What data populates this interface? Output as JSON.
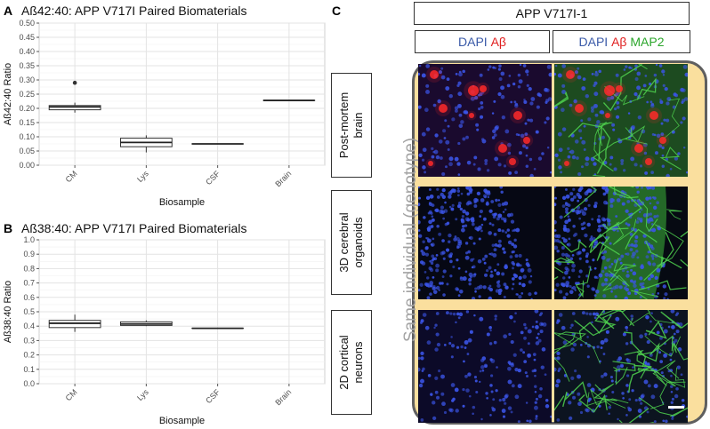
{
  "panel_a": {
    "letter": "A",
    "title_prefix": "Aß42:40: APP V717I Paired Biomaterials",
    "chart_data": {
      "type": "box",
      "title": "Aß42:40: APP V717I Paired Biomaterials",
      "xlabel": "Biosample",
      "ylabel": "Aß42:40 Ratio",
      "categories": [
        "CM",
        "Lys",
        "CSF",
        "Brain"
      ],
      "ylim": [
        0,
        0.5
      ],
      "yticks": [
        "0.00",
        "0.05",
        "0.10",
        "0.15",
        "0.20",
        "0.25",
        "0.30",
        "0.35",
        "0.40",
        "0.45",
        "0.50"
      ],
      "boxes": [
        {
          "category": "CM",
          "min": 0.185,
          "q1": 0.195,
          "median": 0.205,
          "q3": 0.21,
          "max": 0.22,
          "outliers": [
            0.29
          ]
        },
        {
          "category": "Lys",
          "min": 0.045,
          "q1": 0.065,
          "median": 0.08,
          "q3": 0.095,
          "max": 0.105,
          "outliers": []
        },
        {
          "category": "CSF",
          "min": 0.075,
          "q1": 0.075,
          "median": 0.075,
          "q3": 0.075,
          "max": 0.075,
          "outliers": []
        },
        {
          "category": "Brain",
          "min": 0.228,
          "q1": 0.228,
          "median": 0.228,
          "q3": 0.228,
          "max": 0.228,
          "outliers": []
        }
      ],
      "grid": true
    }
  },
  "panel_b": {
    "letter": "B",
    "title_prefix": "Aß38:40: APP V717I Paired Biomaterials",
    "chart_data": {
      "type": "box",
      "title": "Aß38:40: APP V717I Paired Biomaterials",
      "xlabel": "Biosample",
      "ylabel": "Aß38:40 Ratio",
      "categories": [
        "CM",
        "Lys",
        "CSF",
        "Brain"
      ],
      "ylim": [
        0,
        1.0
      ],
      "yticks": [
        "0.0",
        "0.1",
        "0.2",
        "0.3",
        "0.4",
        "0.5",
        "0.6",
        "0.7",
        "0.8",
        "0.9",
        "1.0"
      ],
      "boxes": [
        {
          "category": "CM",
          "min": 0.36,
          "q1": 0.39,
          "median": 0.42,
          "q3": 0.44,
          "max": 0.48,
          "outliers": []
        },
        {
          "category": "Lys",
          "min": 0.4,
          "q1": 0.405,
          "median": 0.415,
          "q3": 0.43,
          "max": 0.44,
          "outliers": []
        },
        {
          "category": "CSF",
          "min": 0.385,
          "q1": 0.385,
          "median": 0.385,
          "q3": 0.385,
          "max": 0.385,
          "outliers": []
        }
      ],
      "grid": true
    }
  },
  "panel_c": {
    "letter": "C",
    "header": "APP V717I-1",
    "col1": {
      "dapi": "DAPI",
      "ab": "Aβ"
    },
    "col2": {
      "dapi": "DAPI",
      "ab": "Aβ",
      "map2": "MAP2"
    },
    "side_label": "Same individual (genotype)",
    "rows": [
      {
        "line1": "Post-mortem",
        "line2": "brain"
      },
      {
        "line1": "3D cerebral",
        "line2": "organoids"
      },
      {
        "line1": "2D cortical",
        "line2": "neurons"
      }
    ],
    "colors": {
      "frame_fill": "#fadf9e",
      "frame_border": "#5f5f5f",
      "dapi": "#3a5aa8",
      "ab": "#e02020",
      "map2": "#2aa52a"
    }
  }
}
